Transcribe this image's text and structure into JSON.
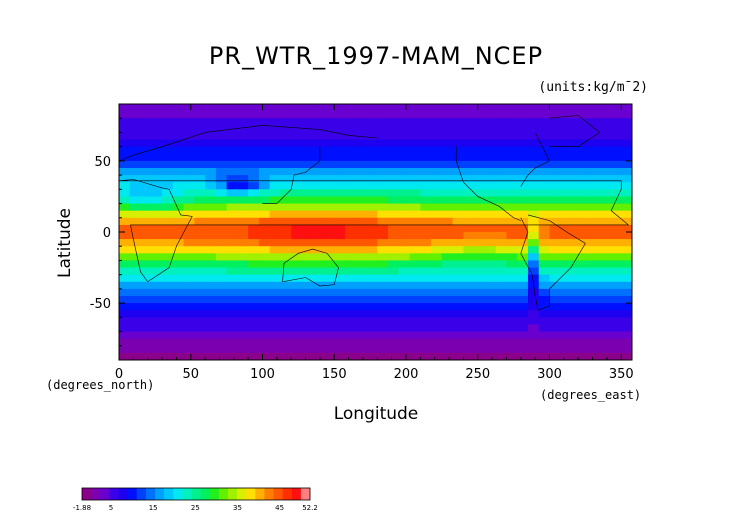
{
  "chart_data": {
    "type": "heatmap",
    "title": "PR_WTR_1997-MAM_NCEP",
    "units": "(units:kg/m¯2)",
    "xlabel": "Longitude",
    "ylabel": "Latitude",
    "x_unit_label": "(degrees_east)",
    "y_unit_label": "(degrees_north)",
    "xlim": [
      0,
      357.5
    ],
    "ylim": [
      -90,
      90
    ],
    "x_ticks": [
      0,
      50,
      100,
      150,
      200,
      250,
      300,
      350
    ],
    "y_ticks": [
      -50,
      0,
      50
    ],
    "colorbar": {
      "min": -1.88,
      "max": 52.2,
      "tick_labels": [
        "-1.88",
        "5",
        "15",
        "25",
        "35",
        "45",
        "52.2"
      ],
      "tick_values": [
        -1.88,
        5,
        15,
        25,
        35,
        45,
        52.2
      ],
      "colors": [
        "#8b008b",
        "#7a00b0",
        "#6a00d0",
        "#3a00e8",
        "#1e00f0",
        "#0010ff",
        "#0040ff",
        "#0070ff",
        "#00a0ff",
        "#00c8ff",
        "#00e8f0",
        "#00f0c0",
        "#00f090",
        "#00f060",
        "#20f020",
        "#60f000",
        "#a0f000",
        "#d8f000",
        "#ffe000",
        "#ffb000",
        "#ff8000",
        "#ff5800",
        "#ff3000",
        "#ff1010",
        "#ff8080"
      ]
    },
    "zonal_profile": {
      "lat": [
        90,
        75,
        60,
        50,
        40,
        30,
        20,
        10,
        0,
        -10,
        -20,
        -30,
        -40,
        -50,
        -60,
        -70,
        -80,
        -90
      ],
      "value": [
        3,
        5,
        8,
        12,
        17,
        22,
        30,
        40,
        45,
        40,
        30,
        22,
        15,
        10,
        7,
        4,
        1,
        -1
      ]
    }
  }
}
